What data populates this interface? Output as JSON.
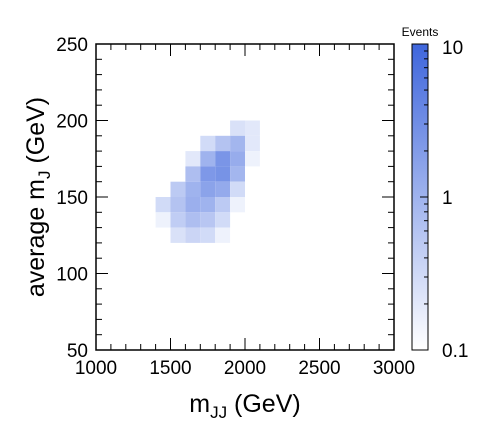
{
  "chart_data": {
    "type": "heatmap",
    "xlabel": "m",
    "xlabel_sub": "JJ",
    "xlabel_unit": " (GeV)",
    "ylabel": "average m",
    "ylabel_sub": "J",
    "ylabel_unit": " (GeV)",
    "xlim": [
      1000,
      3000
    ],
    "ylim": [
      50,
      250
    ],
    "x_ticks": [
      "1000",
      "1500",
      "2000",
      "2500",
      "3000"
    ],
    "y_ticks": [
      "50",
      "100",
      "150",
      "200",
      "250"
    ],
    "x_bin_width": 100,
    "y_bin_width": 10,
    "colorbar": {
      "title": "Events",
      "scale": "log",
      "range": [
        0.1,
        10
      ],
      "ticks": [
        "0.1",
        "1",
        "10"
      ],
      "color_low": "#ffffff",
      "color_high": "#3f66dc"
    },
    "cells": [
      {
        "x": 1950,
        "y": 195,
        "value": 0.25
      },
      {
        "x": 2050,
        "y": 195,
        "value": 0.2
      },
      {
        "x": 1950,
        "y": 185,
        "value": 0.9
      },
      {
        "x": 2050,
        "y": 185,
        "value": 0.2
      },
      {
        "x": 1750,
        "y": 185,
        "value": 0.3
      },
      {
        "x": 1850,
        "y": 185,
        "value": 0.6
      },
      {
        "x": 1650,
        "y": 175,
        "value": 0.2
      },
      {
        "x": 1750,
        "y": 175,
        "value": 1.0
      },
      {
        "x": 1850,
        "y": 175,
        "value": 2.4
      },
      {
        "x": 1950,
        "y": 175,
        "value": 1.2
      },
      {
        "x": 2050,
        "y": 175,
        "value": 0.15
      },
      {
        "x": 1650,
        "y": 165,
        "value": 0.7
      },
      {
        "x": 1750,
        "y": 165,
        "value": 2.2
      },
      {
        "x": 1850,
        "y": 165,
        "value": 2.6
      },
      {
        "x": 1950,
        "y": 165,
        "value": 0.9
      },
      {
        "x": 1550,
        "y": 155,
        "value": 0.5
      },
      {
        "x": 1650,
        "y": 155,
        "value": 1.0
      },
      {
        "x": 1750,
        "y": 155,
        "value": 1.6
      },
      {
        "x": 1850,
        "y": 155,
        "value": 1.3
      },
      {
        "x": 1950,
        "y": 155,
        "value": 0.3
      },
      {
        "x": 1450,
        "y": 145,
        "value": 0.3
      },
      {
        "x": 1550,
        "y": 145,
        "value": 0.6
      },
      {
        "x": 1650,
        "y": 145,
        "value": 1.1
      },
      {
        "x": 1750,
        "y": 145,
        "value": 1.0
      },
      {
        "x": 1850,
        "y": 145,
        "value": 0.5
      },
      {
        "x": 1950,
        "y": 145,
        "value": 0.15
      },
      {
        "x": 1450,
        "y": 135,
        "value": 0.15
      },
      {
        "x": 1550,
        "y": 135,
        "value": 0.45
      },
      {
        "x": 1650,
        "y": 135,
        "value": 0.7
      },
      {
        "x": 1750,
        "y": 135,
        "value": 0.55
      },
      {
        "x": 1850,
        "y": 135,
        "value": 0.3
      },
      {
        "x": 1550,
        "y": 125,
        "value": 0.25
      },
      {
        "x": 1650,
        "y": 125,
        "value": 0.35
      },
      {
        "x": 1750,
        "y": 125,
        "value": 0.3
      },
      {
        "x": 1850,
        "y": 125,
        "value": 0.15
      }
    ]
  }
}
